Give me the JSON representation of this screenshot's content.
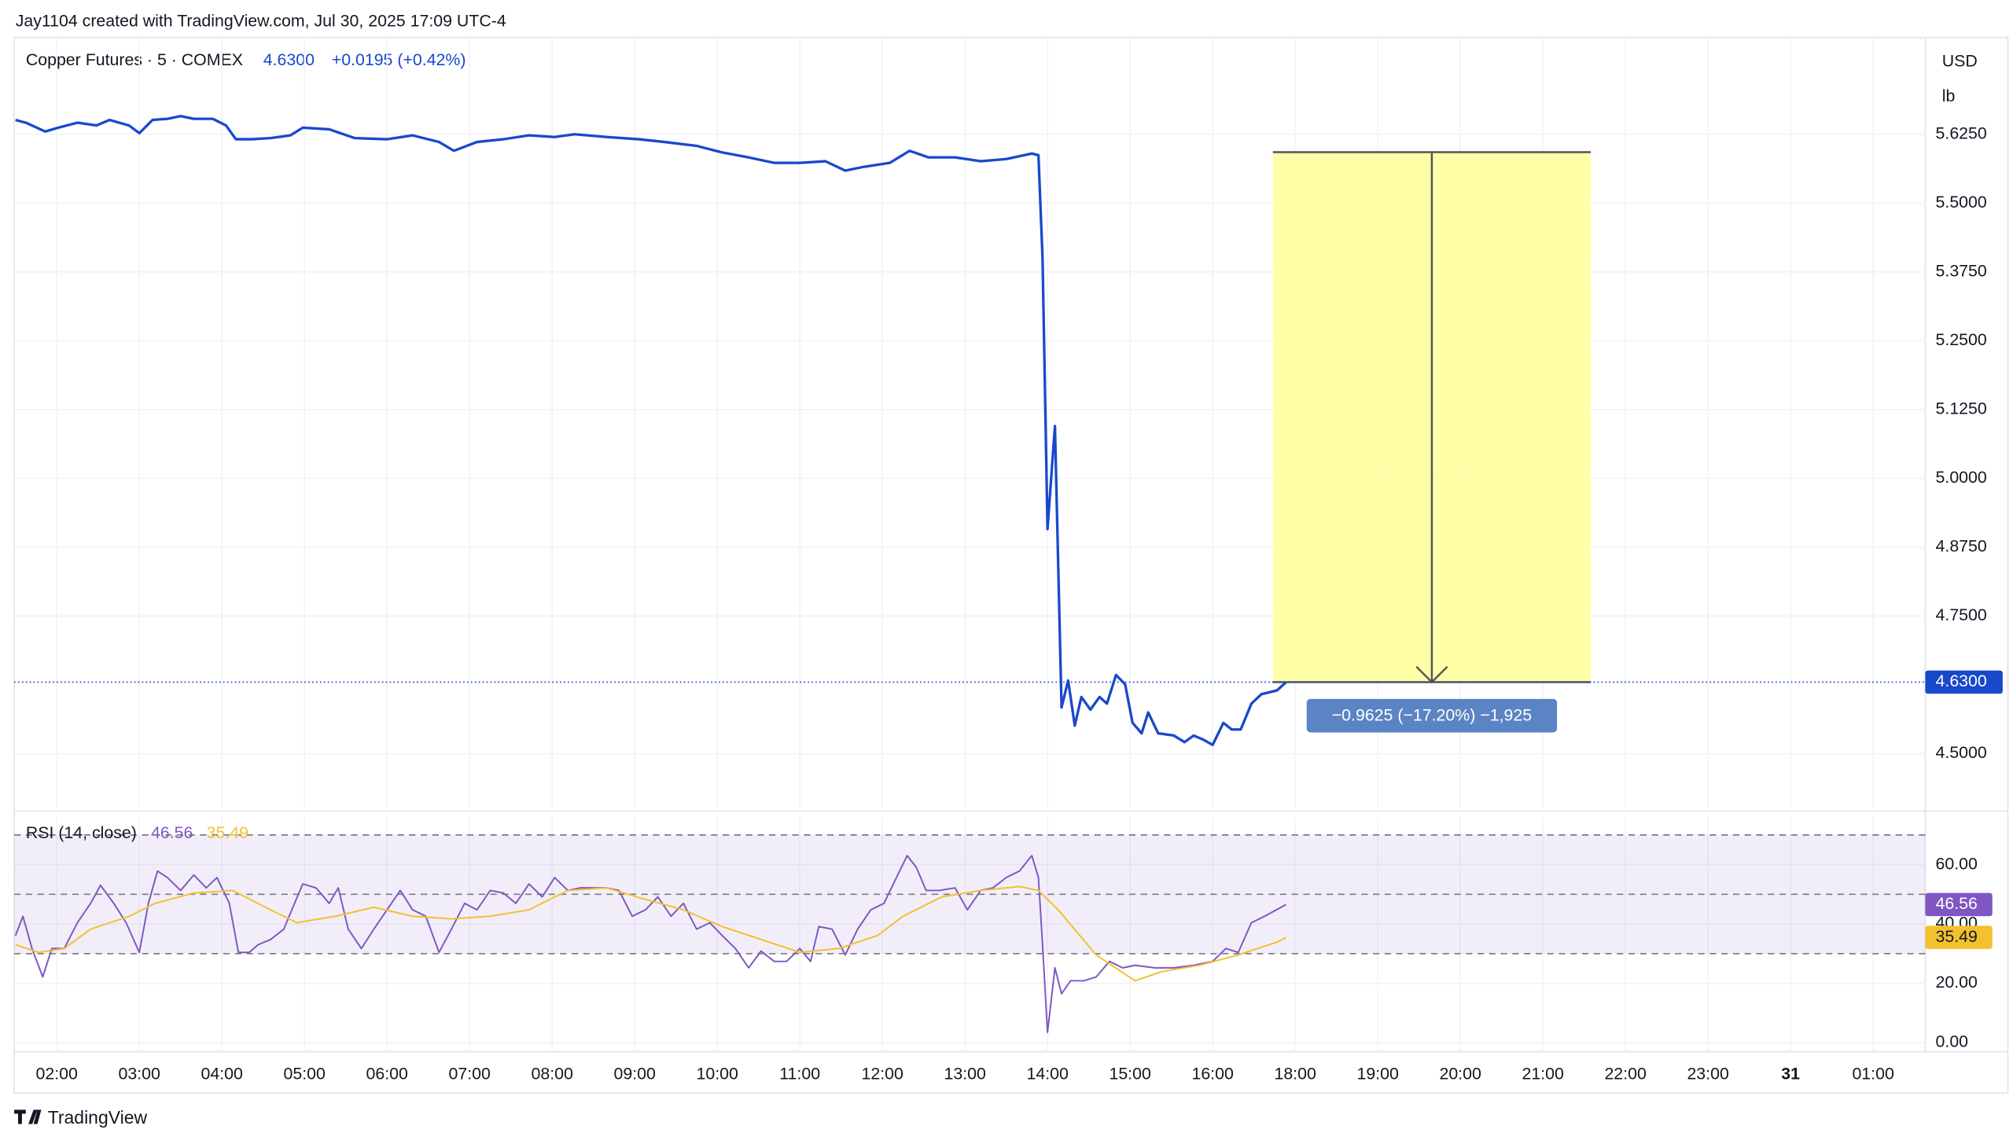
{
  "caption": "Jay1104 created with TradingView.com, Jul 30, 2025 17:09 UTC-4",
  "footer": "TradingView",
  "chart_data": [
    {
      "type": "line",
      "title": "Copper Futures · 5 · COMEX",
      "change": "+0.0195 (+0.42%)",
      "currency": "USD",
      "unit": "lb",
      "last_price": {
        "value": 4.63,
        "label": "4.6300"
      },
      "xlim": [
        1.5,
        25.6
      ],
      "session_break": [
        17,
        18
      ],
      "xticks": [
        {
          "value": 2,
          "label": "02:00"
        },
        {
          "value": 3,
          "label": "03:00"
        },
        {
          "value": 4,
          "label": "04:00"
        },
        {
          "value": 5,
          "label": "05:00"
        },
        {
          "value": 6,
          "label": "06:00"
        },
        {
          "value": 7,
          "label": "07:00"
        },
        {
          "value": 8,
          "label": "08:00"
        },
        {
          "value": 9,
          "label": "09:00"
        },
        {
          "value": 10,
          "label": "10:00"
        },
        {
          "value": 11,
          "label": "11:00"
        },
        {
          "value": 12,
          "label": "12:00"
        },
        {
          "value": 13,
          "label": "13:00"
        },
        {
          "value": 14,
          "label": "14:00"
        },
        {
          "value": 15,
          "label": "15:00"
        },
        {
          "value": 16,
          "label": "16:00"
        },
        {
          "value": 18,
          "label": "18:00"
        },
        {
          "value": 19,
          "label": "19:00"
        },
        {
          "value": 20,
          "label": "20:00"
        },
        {
          "value": 21,
          "label": "21:00"
        },
        {
          "value": 22,
          "label": "22:00"
        },
        {
          "value": 23,
          "label": "23:00"
        },
        {
          "value": 24,
          "label": "31"
        },
        {
          "value": 25,
          "label": "01:00"
        }
      ],
      "ylim": [
        4.4,
        5.8
      ],
      "yticks": [
        {
          "value": 4.5,
          "label": "4.5000"
        },
        {
          "value": 4.75,
          "label": "4.7500"
        },
        {
          "value": 4.875,
          "label": "4.8750"
        },
        {
          "value": 5,
          "label": "5.0000"
        },
        {
          "value": 5.125,
          "label": "5.1250"
        },
        {
          "value": 5.25,
          "label": "5.2500"
        },
        {
          "value": 5.375,
          "label": "5.3750"
        },
        {
          "value": 5.5,
          "label": "5.5000"
        },
        {
          "value": 5.625,
          "label": "5.6250"
        }
      ],
      "grid": true,
      "series": [
        {
          "color": "#1848cc",
          "x": [
            1.5,
            1.625,
            1.86,
            2.02,
            2.25,
            2.48,
            2.64,
            2.875,
            3.0,
            3.16,
            3.34,
            3.5,
            3.66,
            3.89,
            4.05,
            4.17,
            4.36,
            4.59,
            4.83,
            4.98,
            5.3,
            5.61,
            6.0,
            6.31,
            6.63,
            6.81,
            7.09,
            7.41,
            7.72,
            8.03,
            8.27,
            8.66,
            9.05,
            9.36,
            9.75,
            10.06,
            10.38,
            10.69,
            11.0,
            11.31,
            11.55,
            11.78,
            12.09,
            12.33,
            12.56,
            12.88,
            13.19,
            13.5,
            13.81,
            13.89,
            13.94,
            14.0,
            14.09,
            14.17,
            14.25,
            14.33,
            14.41,
            14.52,
            14.63,
            14.72,
            14.83,
            14.94,
            15.03,
            15.14,
            15.22,
            15.34,
            15.53,
            15.66,
            15.77,
            15.88,
            16.0,
            16.13,
            16.23,
            16.34,
            16.47,
            16.59,
            16.78,
            16.89
          ],
          "values": [
            5.651,
            5.646,
            5.63,
            5.637,
            5.646,
            5.641,
            5.651,
            5.641,
            5.627,
            5.651,
            5.653,
            5.658,
            5.653,
            5.653,
            5.641,
            5.616,
            5.616,
            5.618,
            5.623,
            5.637,
            5.634,
            5.618,
            5.616,
            5.623,
            5.611,
            5.595,
            5.611,
            5.616,
            5.623,
            5.62,
            5.625,
            5.62,
            5.616,
            5.611,
            5.604,
            5.592,
            5.583,
            5.573,
            5.573,
            5.576,
            5.559,
            5.566,
            5.573,
            5.595,
            5.583,
            5.583,
            5.576,
            5.58,
            5.59,
            5.587,
            5.4,
            4.908,
            5.095,
            4.584,
            4.633,
            4.551,
            4.603,
            4.58,
            4.603,
            4.591,
            4.643,
            4.626,
            4.556,
            4.537,
            4.575,
            4.537,
            4.533,
            4.521,
            4.533,
            4.526,
            4.516,
            4.556,
            4.544,
            4.544,
            4.591,
            4.608,
            4.615,
            4.63
          ]
        }
      ],
      "measure": {
        "start": 5.5925,
        "end": 4.63,
        "x_start": 16.73,
        "x_end": 21.58,
        "label": "−0.9625 (−17.20%) −1,925",
        "color": "#ffff99"
      }
    },
    {
      "type": "line",
      "title": "RSI (14, close)",
      "ylim": [
        -3,
        77
      ],
      "yticks": [
        {
          "value": 0,
          "label": "0.00"
        },
        {
          "value": 20,
          "label": "20.00"
        },
        {
          "value": 40,
          "label": "40.00"
        },
        {
          "value": 60,
          "label": "60.00"
        }
      ],
      "hlines": [
        70,
        50,
        30
      ],
      "grid": true,
      "series": [
        {
          "color": "#7e57c2",
          "x": [
            1.5,
            1.59,
            1.7,
            1.83,
            1.94,
            2.09,
            2.25,
            2.41,
            2.53,
            2.69,
            2.84,
            3.0,
            3.11,
            3.22,
            3.34,
            3.5,
            3.66,
            3.81,
            3.94,
            4.09,
            4.2,
            4.33,
            4.44,
            4.59,
            4.75,
            4.88,
            4.98,
            5.14,
            5.3,
            5.41,
            5.53,
            5.69,
            5.84,
            6.0,
            6.16,
            6.31,
            6.47,
            6.63,
            6.78,
            6.94,
            7.09,
            7.25,
            7.41,
            7.56,
            7.72,
            7.88,
            8.03,
            8.19,
            8.34,
            8.66,
            8.81,
            8.97,
            9.13,
            9.28,
            9.44,
            9.59,
            9.75,
            9.91,
            10.06,
            10.22,
            10.38,
            10.53,
            10.69,
            10.84,
            11.0,
            11.13,
            11.23,
            11.39,
            11.55,
            11.7,
            11.86,
            12.02,
            12.17,
            12.3,
            12.41,
            12.53,
            12.69,
            12.88,
            13.03,
            13.19,
            13.34,
            13.5,
            13.66,
            13.81,
            13.89,
            13.94,
            14.0,
            14.09,
            14.17,
            14.28,
            14.44,
            14.59,
            14.75,
            14.91,
            15.06,
            15.3,
            15.53,
            15.77,
            16.0,
            16.16,
            16.31,
            16.47,
            16.63,
            16.89
          ],
          "values": [
            36.09,
            42.61,
            31.74,
            22.17,
            31.74,
            31.74,
            40.43,
            46.96,
            53.04,
            46.96,
            40.43,
            30.43,
            46.96,
            57.83,
            55.65,
            51.3,
            56.52,
            52.17,
            55.65,
            46.96,
            30.43,
            30.43,
            33.04,
            34.78,
            38.26,
            46.96,
            53.48,
            52.17,
            46.96,
            52.17,
            38.26,
            31.74,
            38.26,
            44.78,
            51.3,
            44.78,
            42.61,
            30.43,
            38.26,
            46.96,
            44.78,
            51.3,
            50.43,
            46.96,
            53.48,
            49.13,
            55.65,
            51.3,
            52.17,
            52.17,
            51.3,
            42.61,
            44.78,
            49.13,
            42.61,
            46.96,
            38.26,
            40.43,
            36.09,
            31.74,
            25.22,
            30.87,
            27.39,
            27.39,
            31.74,
            27.39,
            39.13,
            38.26,
            29.57,
            38.26,
            44.78,
            46.96,
            55.65,
            63.04,
            59.13,
            51.3,
            51.3,
            52.17,
            44.78,
            51.3,
            52.17,
            55.65,
            57.83,
            63.04,
            55.65,
            33.04,
            3.48,
            25.22,
            16.52,
            20.87,
            20.87,
            22.17,
            27.39,
            25.22,
            26.09,
            25.22,
            25.22,
            26.09,
            27.39,
            31.74,
            30.43,
            40.43,
            42.61,
            46.56
          ]
        },
        {
          "color": "#f2c12e",
          "x": [
            1.5,
            1.78,
            2.09,
            2.41,
            2.88,
            3.19,
            3.66,
            4.13,
            4.59,
            4.91,
            5.38,
            5.84,
            6.31,
            6.78,
            7.25,
            7.72,
            8.19,
            8.66,
            9.13,
            9.59,
            10.06,
            10.53,
            11.0,
            11.47,
            11.94,
            12.25,
            12.72,
            13.19,
            13.66,
            13.89,
            14.13,
            14.59,
            15.06,
            15.38,
            15.84,
            16.31,
            16.78,
            16.89
          ],
          "values": [
            33.04,
            30.43,
            31.74,
            38.26,
            42.61,
            46.96,
            50.43,
            51.3,
            44.78,
            40.43,
            42.61,
            45.65,
            42.61,
            41.74,
            42.61,
            44.78,
            51.3,
            52.17,
            48.26,
            44.78,
            39.13,
            34.78,
            30.43,
            31.74,
            36.09,
            42.61,
            49.13,
            51.3,
            52.61,
            51.3,
            44.78,
            29.57,
            20.87,
            23.91,
            26.09,
            29.57,
            33.91,
            35.49
          ]
        }
      ]
    }
  ]
}
